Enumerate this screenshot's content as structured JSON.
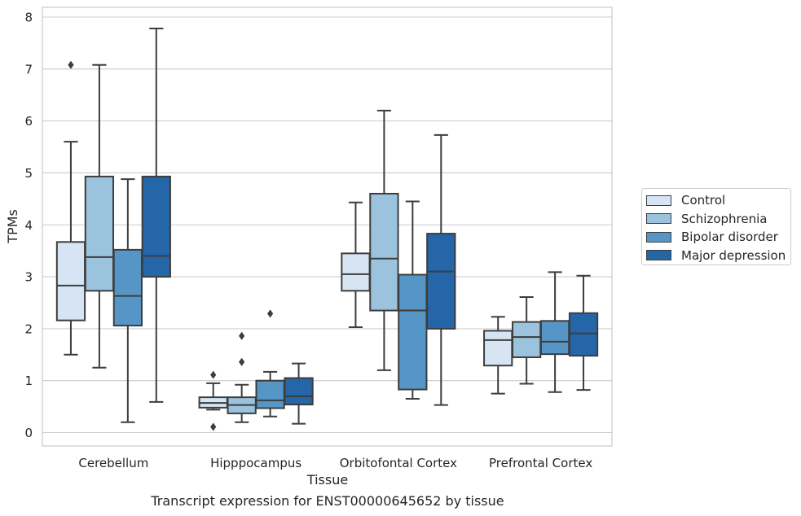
{
  "chart_data": {
    "type": "box",
    "title": "",
    "caption": "Transcript expression for ENST00000645652 by tissue",
    "xlabel": "Tissue",
    "ylabel": "TPMs",
    "ylim": [
      -0.25,
      8.2
    ],
    "yticks": [
      "0",
      "1",
      "2",
      "3",
      "4",
      "5",
      "6",
      "7",
      "8"
    ],
    "grid": true,
    "legend_position": "right",
    "categories": [
      "Cerebellum",
      "Hipppocampus",
      "Orbitofontal Cortex",
      "Prefrontal Cortex"
    ],
    "series": [
      {
        "name": "Control",
        "color": "#d6e4f3",
        "boxes": [
          {
            "whislo": 1.5,
            "q1": 2.16,
            "med": 2.83,
            "q3": 3.67,
            "whishi": 5.6,
            "fliers": [
              7.08
            ]
          },
          {
            "whislo": 0.44,
            "q1": 0.48,
            "med": 0.57,
            "q3": 0.68,
            "whishi": 0.95,
            "fliers": [
              1.11,
              0.11
            ]
          },
          {
            "whislo": 2.03,
            "q1": 2.73,
            "med": 3.05,
            "q3": 3.45,
            "whishi": 4.43,
            "fliers": []
          },
          {
            "whislo": 0.75,
            "q1": 1.29,
            "med": 1.78,
            "q3": 1.96,
            "whishi": 2.23,
            "fliers": []
          }
        ]
      },
      {
        "name": "Schizophrenia",
        "color": "#9cc3dd",
        "boxes": [
          {
            "whislo": 1.25,
            "q1": 2.73,
            "med": 3.38,
            "q3": 4.93,
            "whishi": 7.08,
            "fliers": []
          },
          {
            "whislo": 0.2,
            "q1": 0.37,
            "med": 0.53,
            "q3": 0.68,
            "whishi": 0.92,
            "fliers": [
              1.86,
              1.36
            ]
          },
          {
            "whislo": 1.2,
            "q1": 2.35,
            "med": 3.35,
            "q3": 4.6,
            "whishi": 6.2,
            "fliers": []
          },
          {
            "whislo": 0.94,
            "q1": 1.45,
            "med": 1.84,
            "q3": 2.13,
            "whishi": 2.61,
            "fliers": []
          }
        ]
      },
      {
        "name": "Bipolar disorder",
        "color": "#5596c7",
        "boxes": [
          {
            "whislo": 0.2,
            "q1": 2.06,
            "med": 2.63,
            "q3": 3.52,
            "whishi": 4.88,
            "fliers": []
          },
          {
            "whislo": 0.31,
            "q1": 0.47,
            "med": 0.62,
            "q3": 1.0,
            "whishi": 1.17,
            "fliers": [
              2.29
            ]
          },
          {
            "whislo": 0.65,
            "q1": 0.83,
            "med": 2.35,
            "q3": 3.04,
            "whishi": 4.45,
            "fliers": []
          },
          {
            "whislo": 0.78,
            "q1": 1.51,
            "med": 1.75,
            "q3": 2.15,
            "whishi": 3.09,
            "fliers": []
          }
        ]
      },
      {
        "name": "Major depression",
        "color": "#2566a9",
        "boxes": [
          {
            "whislo": 0.59,
            "q1": 3.0,
            "med": 3.4,
            "q3": 4.93,
            "whishi": 7.78,
            "fliers": []
          },
          {
            "whislo": 0.17,
            "q1": 0.54,
            "med": 0.7,
            "q3": 1.05,
            "whishi": 1.33,
            "fliers": []
          },
          {
            "whislo": 0.53,
            "q1": 2.0,
            "med": 3.1,
            "q3": 3.83,
            "whishi": 5.73,
            "fliers": []
          },
          {
            "whislo": 0.82,
            "q1": 1.48,
            "med": 1.91,
            "q3": 2.3,
            "whishi": 3.02,
            "fliers": []
          }
        ]
      }
    ]
  }
}
